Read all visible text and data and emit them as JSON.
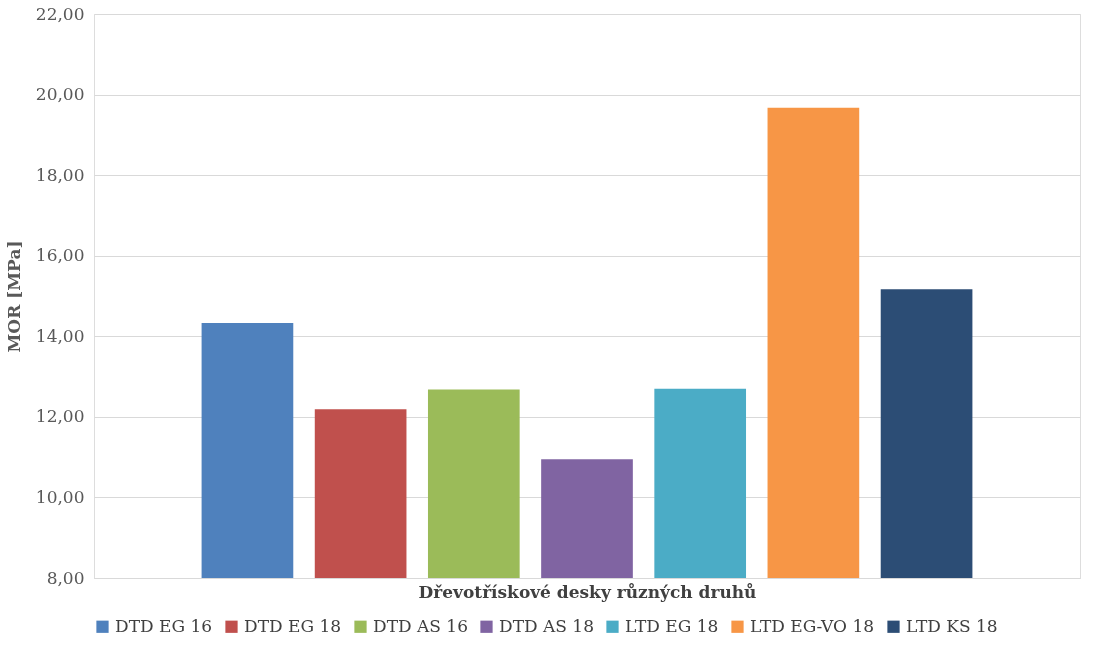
{
  "chart_data": {
    "type": "bar",
    "xlabel": "Dřevotřískové desky různých druhů",
    "ylabel": "MOR [MPa]",
    "categories": [
      null
    ],
    "series": [
      {
        "name": "DTD EG 16",
        "color": "#4f81bd",
        "values": [
          14.33
        ]
      },
      {
        "name": "DTD EG 18",
        "color": "#c0504d",
        "values": [
          12.19
        ]
      },
      {
        "name": "DTD AS 16",
        "color": "#9bbb59",
        "values": [
          12.68
        ]
      },
      {
        "name": "DTD AS 18",
        "color": "#8064a2",
        "values": [
          10.95
        ]
      },
      {
        "name": "LTD EG 18",
        "color": "#4bacc6",
        "values": [
          12.7
        ]
      },
      {
        "name": "LTD EG-VO 18",
        "color": "#f79646",
        "values": [
          19.67
        ]
      },
      {
        "name": "LTD KS 18",
        "color": "#2c4d75",
        "values": [
          15.17
        ]
      }
    ],
    "ylim": [
      8,
      22
    ],
    "yticks": [
      {
        "value": 8,
        "label": "8,00"
      },
      {
        "value": 10,
        "label": "10,00"
      },
      {
        "value": 12,
        "label": "12,00"
      },
      {
        "value": 14,
        "label": "14,00"
      },
      {
        "value": 16,
        "label": "16,00"
      },
      {
        "value": 18,
        "label": "18,00"
      },
      {
        "value": 20,
        "label": "20,00"
      },
      {
        "value": 22,
        "label": "22,00"
      }
    ],
    "grid": "y",
    "legend": "bottom"
  }
}
